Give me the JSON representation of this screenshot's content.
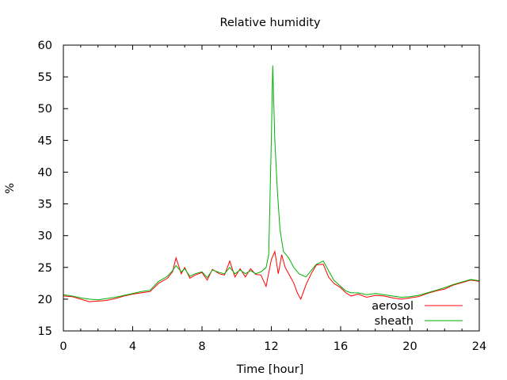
{
  "chart_data": {
    "type": "line",
    "title": "Relative humidity",
    "xlabel": "Time [hour]",
    "ylabel": "%",
    "xlim": [
      0,
      24
    ],
    "ylim": [
      15,
      60
    ],
    "xticks": [
      0,
      4,
      8,
      12,
      16,
      20,
      24
    ],
    "yticks": [
      15,
      20,
      25,
      30,
      35,
      40,
      45,
      50,
      55,
      60
    ],
    "grid": false,
    "legend_position": "bottom-right",
    "series": [
      {
        "name": "aerosol",
        "color": "#ff0000",
        "points": [
          [
            0,
            20.5
          ],
          [
            0.5,
            20.4
          ],
          [
            1,
            20.0
          ],
          [
            1.5,
            19.6
          ],
          [
            2,
            19.7
          ],
          [
            2.5,
            19.8
          ],
          [
            3,
            20.1
          ],
          [
            3.5,
            20.5
          ],
          [
            4,
            20.8
          ],
          [
            4.5,
            21.0
          ],
          [
            5,
            21.2
          ],
          [
            5.5,
            22.5
          ],
          [
            6,
            23.3
          ],
          [
            6.3,
            24.3
          ],
          [
            6.5,
            26.5
          ],
          [
            6.8,
            24.0
          ],
          [
            7,
            25.0
          ],
          [
            7.3,
            23.3
          ],
          [
            7.6,
            23.8
          ],
          [
            8,
            24.2
          ],
          [
            8.3,
            23.0
          ],
          [
            8.6,
            24.7
          ],
          [
            9,
            24.0
          ],
          [
            9.3,
            23.8
          ],
          [
            9.6,
            26.0
          ],
          [
            9.9,
            23.5
          ],
          [
            10.2,
            24.8
          ],
          [
            10.5,
            23.5
          ],
          [
            10.8,
            24.8
          ],
          [
            11.1,
            23.9
          ],
          [
            11.4,
            23.8
          ],
          [
            11.7,
            22.0
          ],
          [
            12,
            26.2
          ],
          [
            12.2,
            27.5
          ],
          [
            12.4,
            24.0
          ],
          [
            12.6,
            27.0
          ],
          [
            12.8,
            25.0
          ],
          [
            13,
            24.0
          ],
          [
            13.3,
            22.5
          ],
          [
            13.5,
            21.0
          ],
          [
            13.7,
            20.0
          ],
          [
            14,
            22.3
          ],
          [
            14.3,
            24.0
          ],
          [
            14.6,
            25.4
          ],
          [
            15,
            25.5
          ],
          [
            15.3,
            23.5
          ],
          [
            15.6,
            22.5
          ],
          [
            16,
            21.8
          ],
          [
            16.3,
            21.0
          ],
          [
            16.6,
            20.5
          ],
          [
            17,
            20.8
          ],
          [
            17.5,
            20.3
          ],
          [
            18,
            20.6
          ],
          [
            18.5,
            20.5
          ],
          [
            19,
            20.2
          ],
          [
            19.5,
            20.0
          ],
          [
            20,
            20.2
          ],
          [
            20.5,
            20.4
          ],
          [
            21,
            20.9
          ],
          [
            21.5,
            21.3
          ],
          [
            22,
            21.6
          ],
          [
            22.5,
            22.2
          ],
          [
            23,
            22.6
          ],
          [
            23.5,
            23.0
          ],
          [
            24,
            22.8
          ]
        ]
      },
      {
        "name": "sheath",
        "color": "#00b000",
        "points": [
          [
            0,
            20.7
          ],
          [
            0.5,
            20.5
          ],
          [
            1,
            20.2
          ],
          [
            1.5,
            20.0
          ],
          [
            2,
            19.9
          ],
          [
            2.5,
            20.1
          ],
          [
            3,
            20.3
          ],
          [
            3.5,
            20.6
          ],
          [
            4,
            20.9
          ],
          [
            4.5,
            21.2
          ],
          [
            5,
            21.4
          ],
          [
            5.5,
            22.8
          ],
          [
            6,
            23.6
          ],
          [
            6.3,
            24.5
          ],
          [
            6.5,
            25.3
          ],
          [
            6.8,
            24.3
          ],
          [
            7,
            24.8
          ],
          [
            7.3,
            23.6
          ],
          [
            7.6,
            24.0
          ],
          [
            8,
            24.3
          ],
          [
            8.3,
            23.4
          ],
          [
            8.6,
            24.6
          ],
          [
            9,
            24.2
          ],
          [
            9.3,
            24.0
          ],
          [
            9.6,
            25.0
          ],
          [
            9.9,
            24.0
          ],
          [
            10.2,
            24.6
          ],
          [
            10.5,
            24.0
          ],
          [
            10.8,
            24.5
          ],
          [
            11.1,
            24.0
          ],
          [
            11.4,
            24.3
          ],
          [
            11.7,
            25.0
          ],
          [
            11.85,
            27.0
          ],
          [
            12.0,
            45.0
          ],
          [
            12.08,
            56.8
          ],
          [
            12.2,
            45.0
          ],
          [
            12.35,
            37.0
          ],
          [
            12.5,
            31.0
          ],
          [
            12.7,
            27.5
          ],
          [
            13,
            26.5
          ],
          [
            13.3,
            25.0
          ],
          [
            13.6,
            24.0
          ],
          [
            14,
            23.5
          ],
          [
            14.3,
            24.5
          ],
          [
            14.6,
            25.5
          ],
          [
            15,
            26.0
          ],
          [
            15.3,
            24.5
          ],
          [
            15.6,
            23.0
          ],
          [
            16,
            22.0
          ],
          [
            16.3,
            21.3
          ],
          [
            16.6,
            21.0
          ],
          [
            17,
            21.0
          ],
          [
            17.5,
            20.7
          ],
          [
            18,
            20.9
          ],
          [
            18.5,
            20.7
          ],
          [
            19,
            20.5
          ],
          [
            19.5,
            20.3
          ],
          [
            20,
            20.4
          ],
          [
            20.5,
            20.6
          ],
          [
            21,
            21.0
          ],
          [
            21.5,
            21.4
          ],
          [
            22,
            21.8
          ],
          [
            22.5,
            22.3
          ],
          [
            23,
            22.7
          ],
          [
            23.5,
            23.1
          ],
          [
            24,
            22.9
          ]
        ]
      }
    ]
  }
}
